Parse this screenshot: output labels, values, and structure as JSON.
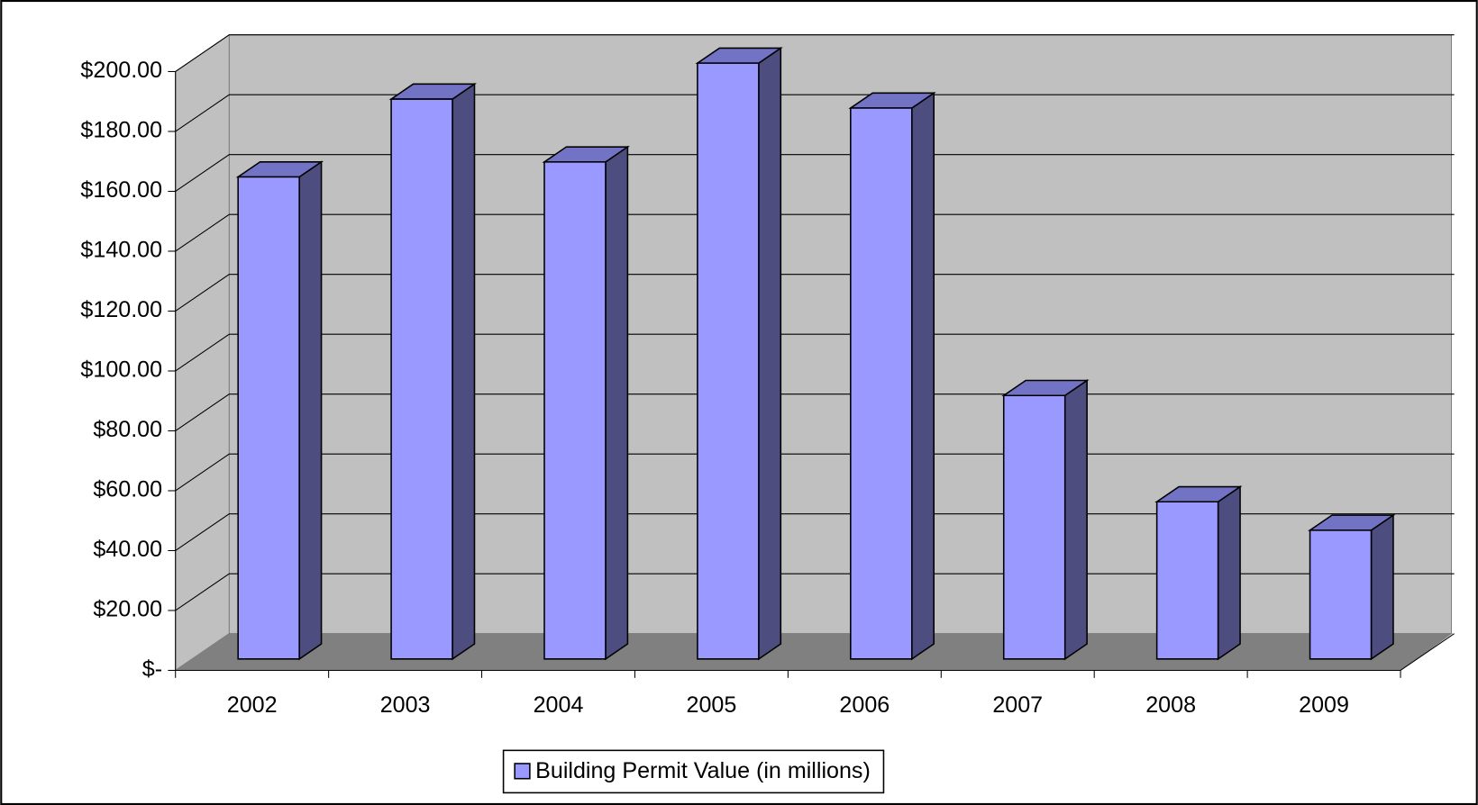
{
  "chart_data": {
    "type": "bar",
    "categories": [
      "2002",
      "2003",
      "2004",
      "2005",
      "2006",
      "2007",
      "2008",
      "2009"
    ],
    "series": [
      {
        "name": "Building Permit Value (in millions)",
        "color": "#9999ff",
        "values": [
          161,
          187,
          166,
          199,
          184,
          88,
          52.5,
          43
        ]
      }
    ],
    "ylim": [
      0,
      200
    ],
    "yticks": [
      {
        "value": 0,
        "label": "$-"
      },
      {
        "value": 20,
        "label": "$20.00"
      },
      {
        "value": 40,
        "label": "$40.00"
      },
      {
        "value": 60,
        "label": "$60.00"
      },
      {
        "value": 80,
        "label": "$80.00"
      },
      {
        "value": 100,
        "label": "$100.00"
      },
      {
        "value": 120,
        "label": "$120.00"
      },
      {
        "value": 140,
        "label": "$140.00"
      },
      {
        "value": 160,
        "label": "$160.00"
      },
      {
        "value": 180,
        "label": "$180.00"
      },
      {
        "value": 200,
        "label": "$200.00"
      }
    ],
    "grid": true,
    "legend": "bottom"
  }
}
